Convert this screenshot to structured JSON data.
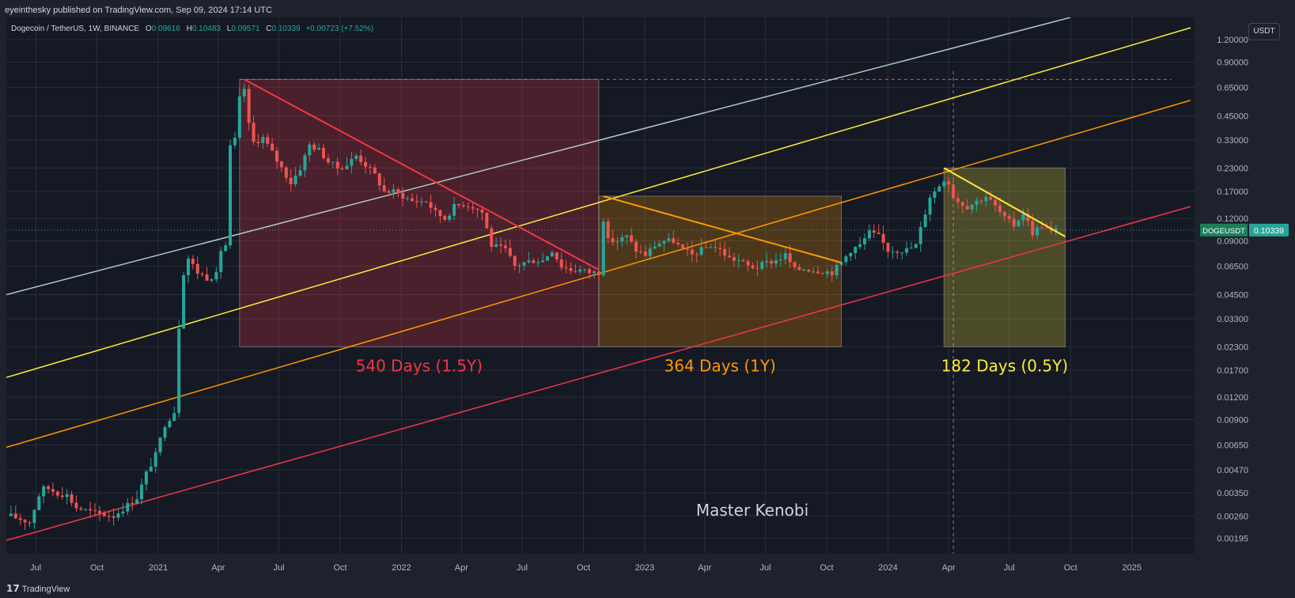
{
  "header": {
    "published": "eyeinthesky published on TradingView.com, Sep 09, 2024 17:14 UTC"
  },
  "symbol": {
    "name": "Dogecoin / TetherUS, 1W, BINANCE",
    "o_label": "O",
    "o_value": "0.09616",
    "h_label": "H",
    "h_value": "0.10483",
    "l_label": "L",
    "l_value": "0.09571",
    "c_label": "C",
    "c_value": "0.10339",
    "change": "+0.00723 (+7.52%)"
  },
  "currency_button": "USDT",
  "footer": {
    "brand": "TradingView"
  },
  "colors": {
    "background": "#1e222d",
    "grid": "#2a2e39",
    "up": "#26a69a",
    "down": "#ef5350",
    "red_zone": "#f23645",
    "orange_zone": "#ff9800",
    "yellow_zone": "#ffeb3b",
    "channel_white": "#b2c7c4",
    "channel_yellow": "#ffeb3b",
    "channel_orange": "#ff9800",
    "channel_red": "#f23645"
  },
  "chart_data": {
    "type": "candlestick",
    "title": "Dogecoin / TetherUS, 1W, BINANCE",
    "y_scale": "log",
    "ylim": [
      0.0016,
      1.6
    ],
    "y_ticks": [
      "1.20000",
      "0.90000",
      "0.65000",
      "0.45000",
      "0.33000",
      "0.23000",
      "0.17000",
      "0.12000",
      "0.09000",
      "0.06500",
      "0.04500",
      "0.03300",
      "0.02300",
      "0.01700",
      "0.01200",
      "0.00900",
      "0.00650",
      "0.00470",
      "0.00350",
      "0.00260",
      "0.00195"
    ],
    "x_ticks": [
      {
        "label": "Jul",
        "date": "2020-07-01"
      },
      {
        "label": "Oct",
        "date": "2020-10-01"
      },
      {
        "label": "2021",
        "date": "2021-01-01"
      },
      {
        "label": "Apr",
        "date": "2021-04-01"
      },
      {
        "label": "Jul",
        "date": "2021-07-01"
      },
      {
        "label": "Oct",
        "date": "2021-10-01"
      },
      {
        "label": "2022",
        "date": "2022-01-01"
      },
      {
        "label": "Apr",
        "date": "2022-04-01"
      },
      {
        "label": "Jul",
        "date": "2022-07-01"
      },
      {
        "label": "Oct",
        "date": "2022-10-01"
      },
      {
        "label": "2023",
        "date": "2023-01-01"
      },
      {
        "label": "Apr",
        "date": "2023-04-01"
      },
      {
        "label": "Jul",
        "date": "2023-07-01"
      },
      {
        "label": "Oct",
        "date": "2023-10-01"
      },
      {
        "label": "2024",
        "date": "2024-01-01"
      },
      {
        "label": "Apr",
        "date": "2024-04-01"
      },
      {
        "label": "Jul",
        "date": "2024-07-01"
      },
      {
        "label": "Oct",
        "date": "2024-10-01"
      },
      {
        "label": "2025",
        "date": "2025-01-01"
      }
    ],
    "x_range": [
      "2020-05-18",
      "2025-04-05"
    ],
    "price_path": [
      [
        "2020-05-25",
        0.0026
      ],
      [
        "2020-06-22",
        0.0024
      ],
      [
        "2020-07-06",
        0.0034
      ],
      [
        "2020-07-13",
        0.0037
      ],
      [
        "2020-07-20",
        0.0037
      ],
      [
        "2020-08-03",
        0.0035
      ],
      [
        "2020-08-17",
        0.0034
      ],
      [
        "2020-08-31",
        0.0029
      ],
      [
        "2020-09-28",
        0.0027
      ],
      [
        "2020-10-26",
        0.0026
      ],
      [
        "2020-11-16",
        0.003
      ],
      [
        "2020-11-30",
        0.0033
      ],
      [
        "2020-12-14",
        0.0045
      ],
      [
        "2020-12-28",
        0.0057
      ],
      [
        "2021-01-11",
        0.0085
      ],
      [
        "2021-01-25",
        0.01
      ],
      [
        "2021-02-01",
        0.03
      ],
      [
        "2021-02-08",
        0.06
      ],
      [
        "2021-02-15",
        0.072
      ],
      [
        "2021-03-01",
        0.06
      ],
      [
        "2021-03-15",
        0.056
      ],
      [
        "2021-03-29",
        0.058
      ],
      [
        "2021-04-05",
        0.08
      ],
      [
        "2021-04-12",
        0.085
      ],
      [
        "2021-04-19",
        0.3
      ],
      [
        "2021-04-26",
        0.33
      ],
      [
        "2021-05-03",
        0.56
      ],
      [
        "2021-05-10",
        0.64
      ],
      [
        "2021-05-17",
        0.4
      ],
      [
        "2021-05-24",
        0.32
      ],
      [
        "2021-06-07",
        0.34
      ],
      [
        "2021-06-21",
        0.28
      ],
      [
        "2021-07-05",
        0.23
      ],
      [
        "2021-07-19",
        0.19
      ],
      [
        "2021-08-02",
        0.23
      ],
      [
        "2021-08-16",
        0.31
      ],
      [
        "2021-08-30",
        0.29
      ],
      [
        "2021-09-13",
        0.25
      ],
      [
        "2021-09-27",
        0.23
      ],
      [
        "2021-10-11",
        0.24
      ],
      [
        "2021-10-25",
        0.27
      ],
      [
        "2021-11-08",
        0.24
      ],
      [
        "2021-11-22",
        0.21
      ],
      [
        "2021-12-06",
        0.17
      ],
      [
        "2021-12-20",
        0.17
      ],
      [
        "2022-01-03",
        0.16
      ],
      [
        "2022-01-17",
        0.15
      ],
      [
        "2022-02-07",
        0.15
      ],
      [
        "2022-02-21",
        0.13
      ],
      [
        "2022-03-07",
        0.12
      ],
      [
        "2022-03-21",
        0.14
      ],
      [
        "2022-04-04",
        0.145
      ],
      [
        "2022-04-18",
        0.14
      ],
      [
        "2022-05-02",
        0.13
      ],
      [
        "2022-05-16",
        0.085
      ],
      [
        "2022-06-06",
        0.08
      ],
      [
        "2022-06-20",
        0.065
      ],
      [
        "2022-07-04",
        0.068
      ],
      [
        "2022-07-18",
        0.07
      ],
      [
        "2022-08-01",
        0.07
      ],
      [
        "2022-08-15",
        0.08
      ],
      [
        "2022-08-29",
        0.065
      ],
      [
        "2022-09-12",
        0.062
      ],
      [
        "2022-09-26",
        0.062
      ],
      [
        "2022-10-10",
        0.06
      ],
      [
        "2022-10-24",
        0.06
      ],
      [
        "2022-10-31",
        0.12
      ],
      [
        "2022-11-07",
        0.09
      ],
      [
        "2022-11-21",
        0.09
      ],
      [
        "2022-12-05",
        0.095
      ],
      [
        "2022-12-19",
        0.08
      ],
      [
        "2023-01-02",
        0.075
      ],
      [
        "2023-01-16",
        0.085
      ],
      [
        "2023-01-30",
        0.09
      ],
      [
        "2023-02-13",
        0.09
      ],
      [
        "2023-02-27",
        0.08
      ],
      [
        "2023-03-13",
        0.075
      ],
      [
        "2023-03-27",
        0.08
      ],
      [
        "2023-04-10",
        0.085
      ],
      [
        "2023-04-24",
        0.08
      ],
      [
        "2023-05-08",
        0.072
      ],
      [
        "2023-05-22",
        0.07
      ],
      [
        "2023-06-05",
        0.065
      ],
      [
        "2023-06-19",
        0.064
      ],
      [
        "2023-07-03",
        0.068
      ],
      [
        "2023-07-17",
        0.07
      ],
      [
        "2023-07-31",
        0.075
      ],
      [
        "2023-08-14",
        0.062
      ],
      [
        "2023-08-28",
        0.063
      ],
      [
        "2023-09-11",
        0.062
      ],
      [
        "2023-09-25",
        0.061
      ],
      [
        "2023-10-09",
        0.06
      ],
      [
        "2023-10-23",
        0.068
      ],
      [
        "2023-11-06",
        0.08
      ],
      [
        "2023-11-20",
        0.085
      ],
      [
        "2023-12-04",
        0.1
      ],
      [
        "2023-12-18",
        0.095
      ],
      [
        "2024-01-01",
        0.08
      ],
      [
        "2024-01-15",
        0.08
      ],
      [
        "2024-01-29",
        0.08
      ],
      [
        "2024-02-12",
        0.085
      ],
      [
        "2024-02-26",
        0.13
      ],
      [
        "2024-03-04",
        0.16
      ],
      [
        "2024-03-11",
        0.17
      ],
      [
        "2024-03-25",
        0.2
      ],
      [
        "2024-04-01",
        0.19
      ],
      [
        "2024-04-08",
        0.16
      ],
      [
        "2024-04-15",
        0.15
      ],
      [
        "2024-04-29",
        0.14
      ],
      [
        "2024-05-13",
        0.15
      ],
      [
        "2024-05-27",
        0.16
      ],
      [
        "2024-06-10",
        0.14
      ],
      [
        "2024-06-24",
        0.12
      ],
      [
        "2024-07-08",
        0.11
      ],
      [
        "2024-07-22",
        0.13
      ],
      [
        "2024-08-05",
        0.1
      ],
      [
        "2024-08-19",
        0.11
      ],
      [
        "2024-09-02",
        0.1
      ],
      [
        "2024-09-09",
        0.10339
      ]
    ],
    "channels": [
      {
        "name": "white",
        "from": [
          "2020-05-18",
          0.045
        ],
        "to": [
          "2024-10-01",
          1.6
        ]
      },
      {
        "name": "yellow",
        "from": [
          "2020-05-18",
          0.0155
        ],
        "to": [
          "2025-03-30",
          1.4
        ]
      },
      {
        "name": "orange",
        "from": [
          "2020-05-18",
          0.0063
        ],
        "to": [
          "2025-03-30",
          0.55
        ]
      },
      {
        "name": "red",
        "from": [
          "2020-05-18",
          0.0019
        ],
        "to": [
          "2025-03-30",
          0.14
        ]
      }
    ],
    "zones": [
      {
        "label": "540 Days (1.5Y)",
        "color_key": "red_zone",
        "from": "2021-05-03",
        "to": "2022-10-24",
        "y_top": 0.72,
        "y_bottom": 0.023
      },
      {
        "label": "364 Days (1Y)",
        "color_key": "orange_zone",
        "from": "2022-10-24",
        "to": "2023-10-23",
        "y_top": 0.16,
        "y_bottom": 0.023
      },
      {
        "label": "182 Days (0.5Y)",
        "color_key": "yellow_zone",
        "from": "2024-03-25",
        "to": "2024-09-23",
        "y_top": 0.23,
        "y_bottom": 0.023
      }
    ],
    "trendlines": [
      {
        "color_key": "red_zone",
        "from": [
          "2021-05-10",
          0.72
        ],
        "to": [
          "2022-10-24",
          0.062
        ]
      },
      {
        "color_key": "orange_zone",
        "from": [
          "2022-10-31",
          0.16
        ],
        "to": [
          "2023-10-23",
          0.068
        ]
      },
      {
        "color_key": "yellow_zone",
        "from": [
          "2024-03-25",
          0.23
        ],
        "to": [
          "2024-09-23",
          0.095
        ]
      }
    ],
    "high_line": {
      "value": 0.72,
      "from": "2021-05-03",
      "to": "2025-03-01"
    },
    "vertical_marker": "2024-04-08",
    "last_price_label": "DOGEUSDT",
    "last_price": "0.10339",
    "watermark": "Master Kenobi"
  }
}
